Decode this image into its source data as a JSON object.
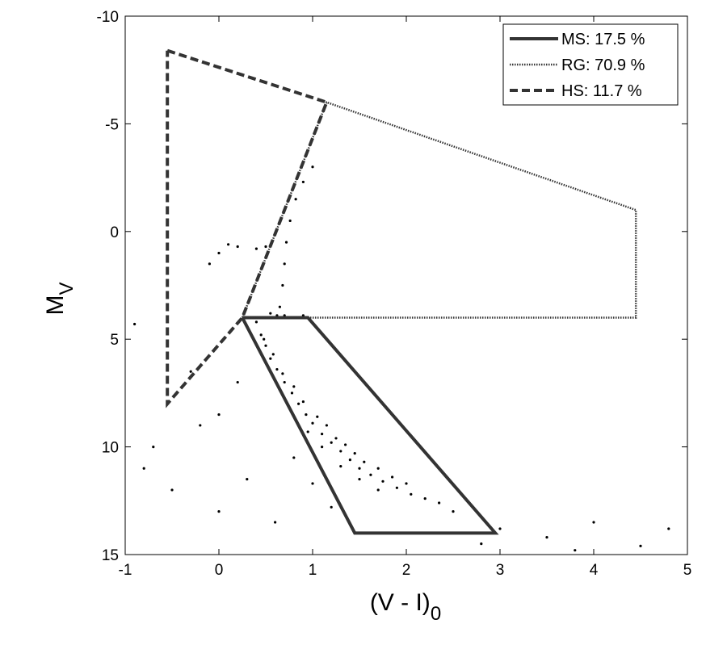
{
  "chart_data": {
    "type": "scatter",
    "x_label": {
      "text": "(V - I)",
      "subscript": "0"
    },
    "y_label": {
      "text": "M",
      "subscript": "V"
    },
    "xlim": [
      -1,
      5
    ],
    "xticks": [
      -1,
      0,
      1,
      2,
      3,
      4,
      5
    ],
    "ylim": [
      -10,
      15
    ],
    "yticks": [
      -10,
      -5,
      0,
      5,
      10,
      15
    ],
    "y_reversed": true,
    "legend": "upper right",
    "points": {
      "color": "#000000",
      "x": [
        0.4,
        0.45,
        0.5,
        0.55,
        0.62,
        0.7,
        0.78,
        0.85,
        0.93,
        1.0,
        1.1,
        1.2,
        1.3,
        1.4,
        1.5,
        1.62,
        1.75,
        1.9,
        2.05,
        2.2,
        0.48,
        0.58,
        0.68,
        0.8,
        0.9,
        1.05,
        1.15,
        1.25,
        1.35,
        1.45,
        1.55,
        1.7,
        1.85,
        2.0,
        2.35,
        0.95,
        1.1,
        1.3,
        1.5,
        1.7,
        0.65,
        0.68,
        0.7,
        0.72,
        0.76,
        0.82,
        0.9,
        1.0,
        0.62,
        0.55,
        0.5,
        -0.1,
        0.0,
        0.1,
        0.2,
        0.4,
        0.5,
        0.7,
        0.8,
        0.9,
        -0.8,
        -0.5,
        -0.2,
        0.0,
        0.3,
        0.6,
        1.2,
        2.5,
        3.0,
        3.5,
        4.0,
        4.5,
        4.8,
        -0.9,
        -0.7,
        0.2,
        0.0,
        -0.3,
        2.8,
        3.8,
        1.0,
        0.8
      ],
      "y": [
        4.2,
        4.8,
        5.3,
        5.9,
        6.4,
        7.0,
        7.5,
        8.0,
        8.5,
        8.9,
        9.4,
        9.8,
        10.2,
        10.6,
        11.0,
        11.3,
        11.6,
        11.9,
        12.2,
        12.4,
        5.0,
        5.7,
        6.6,
        7.2,
        7.9,
        8.6,
        9.0,
        9.6,
        9.9,
        10.3,
        10.7,
        11.0,
        11.4,
        11.7,
        12.6,
        9.3,
        10.0,
        10.9,
        11.5,
        12.0,
        3.5,
        2.5,
        1.5,
        0.5,
        -0.5,
        -1.5,
        -2.3,
        -3.0,
        3.9,
        3.8,
        4.0,
        1.5,
        1.0,
        0.6,
        0.7,
        0.8,
        0.7,
        3.9,
        4.0,
        3.9,
        11,
        12,
        9,
        13,
        11.5,
        13.5,
        12.8,
        13,
        13.8,
        14.2,
        13.5,
        14.6,
        13.8,
        4.3,
        10,
        7,
        8.5,
        6.5,
        14.5,
        14.8,
        11.7,
        10.5
      ]
    },
    "series": [
      {
        "name": "MS: 17.5 %",
        "color": "#333333",
        "dash": "solid",
        "x": [
          0.25,
          0.95,
          2.95,
          1.45,
          0.25
        ],
        "y": [
          4,
          4,
          14,
          14,
          4
        ]
      },
      {
        "name": "RG: 70.9 %",
        "color": "#333333",
        "dash": "dotted",
        "x": [
          0.25,
          1.15,
          4.45,
          4.45,
          0.25
        ],
        "y": [
          4,
          -6,
          -1,
          4,
          4
        ]
      },
      {
        "name": "HS: 11.7 %",
        "color": "#333333",
        "dash": "dashed",
        "x": [
          -0.55,
          1.15,
          0.25,
          -0.55,
          -0.55
        ],
        "y": [
          -8.4,
          -6,
          4,
          8,
          -8.4
        ]
      }
    ]
  }
}
